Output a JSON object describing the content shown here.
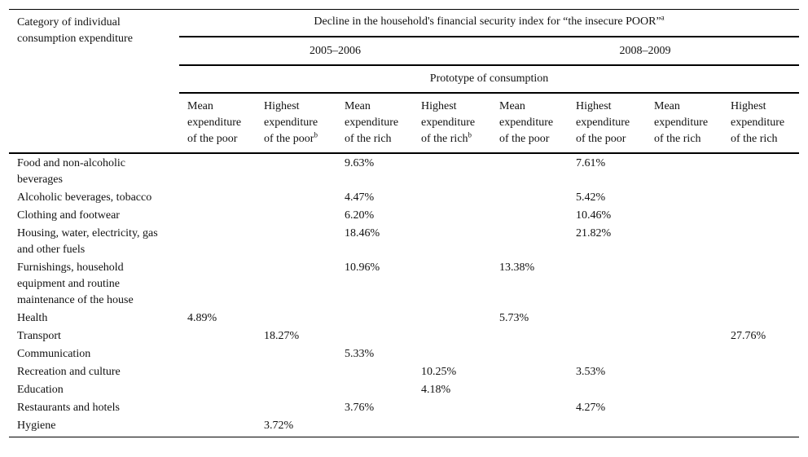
{
  "table": {
    "category_header": "Category of individual consumption expenditure",
    "decline_header": "Decline in the household's financial security index for “the insecure POOR”",
    "decline_header_note": "a",
    "periods": [
      "2005–2006",
      "2008–2009"
    ],
    "prototype_header": "Prototype of consumption",
    "subheaders": [
      {
        "label": "Mean expenditure of the poor",
        "note": ""
      },
      {
        "label": "Highest expenditure of the poor",
        "note": "b"
      },
      {
        "label": "Mean expenditure of the rich",
        "note": ""
      },
      {
        "label": "Highest expenditure of the rich",
        "note": "b"
      },
      {
        "label": "Mean expenditure of the poor",
        "note": ""
      },
      {
        "label": "Highest expenditure of the poor",
        "note": ""
      },
      {
        "label": "Mean expenditure of the rich",
        "note": ""
      },
      {
        "label": "Highest expenditure of the rich",
        "note": ""
      }
    ],
    "rows": [
      {
        "category": "Food and non-alcoholic beverages",
        "values": [
          "",
          "",
          "9.63%",
          "",
          "",
          "7.61%",
          "",
          ""
        ]
      },
      {
        "category": "Alcoholic beverages, tobacco",
        "values": [
          "",
          "",
          "4.47%",
          "",
          "",
          "5.42%",
          "",
          ""
        ]
      },
      {
        "category": "Clothing and footwear",
        "values": [
          "",
          "",
          "6.20%",
          "",
          "",
          "10.46%",
          "",
          ""
        ]
      },
      {
        "category": "Housing, water, electricity, gas and other fuels",
        "values": [
          "",
          "",
          "18.46%",
          "",
          "",
          "21.82%",
          "",
          ""
        ]
      },
      {
        "category": "Furnishings, household equipment and routine maintenance of the house",
        "values": [
          "",
          "",
          "10.96%",
          "",
          "13.38%",
          "",
          "",
          ""
        ]
      },
      {
        "category": "Health",
        "values": [
          "4.89%",
          "",
          "",
          "",
          "5.73%",
          "",
          "",
          ""
        ]
      },
      {
        "category": "Transport",
        "values": [
          "",
          "18.27%",
          "",
          "",
          "",
          "",
          "",
          "27.76%"
        ]
      },
      {
        "category": "Communication",
        "values": [
          "",
          "",
          "5.33%",
          "",
          "",
          "",
          "",
          ""
        ]
      },
      {
        "category": "Recreation and culture",
        "values": [
          "",
          "",
          "",
          "10.25%",
          "",
          "3.53%",
          "",
          ""
        ]
      },
      {
        "category": "Education",
        "values": [
          "",
          "",
          "",
          "4.18%",
          "",
          "",
          "",
          ""
        ]
      },
      {
        "category": "Restaurants and hotels",
        "values": [
          "",
          "",
          "3.76%",
          "",
          "",
          "4.27%",
          "",
          ""
        ]
      },
      {
        "category": "Hygiene",
        "values": [
          "",
          "3.72%",
          "",
          "",
          "",
          "",
          "",
          ""
        ]
      }
    ]
  }
}
